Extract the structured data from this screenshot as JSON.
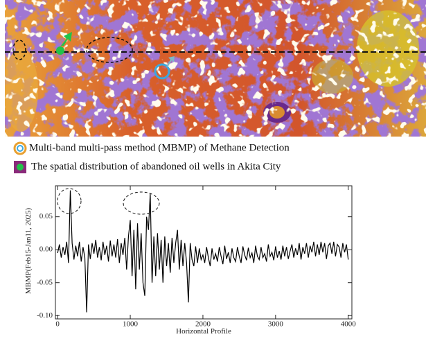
{
  "legend": [
    {
      "label": "Multi-band multi-pass method (MBMP) of Methane Detection"
    },
    {
      "label": "The spatial distribution of abandoned oil wells in Akita City"
    }
  ],
  "chart_data": {
    "type": "line",
    "xlabel": "Horizontal Profile",
    "ylabel": "MBMP(Feb15-Jan11, 2025)",
    "color": "#000000",
    "xlim": [
      -30,
      4050
    ],
    "ylim": [
      -0.105,
      0.097
    ],
    "xticks": [
      0,
      1000,
      2000,
      3000,
      4000
    ],
    "yticks": [
      {
        "value": -0.1,
        "label": "-0.10"
      },
      -0.05,
      {
        "value": 0,
        "label": "0.00"
      },
      0.05
    ],
    "x": [
      0,
      25,
      50,
      75,
      100,
      125,
      150,
      175,
      200,
      225,
      250,
      275,
      300,
      325,
      350,
      375,
      400,
      425,
      450,
      475,
      500,
      525,
      550,
      575,
      600,
      625,
      650,
      675,
      700,
      725,
      750,
      775,
      800,
      825,
      850,
      875,
      900,
      925,
      950,
      975,
      1000,
      1025,
      1050,
      1075,
      1100,
      1125,
      1150,
      1175,
      1200,
      1225,
      1250,
      1275,
      1300,
      1325,
      1350,
      1375,
      1400,
      1425,
      1450,
      1475,
      1500,
      1525,
      1550,
      1575,
      1600,
      1625,
      1650,
      1675,
      1700,
      1725,
      1750,
      1775,
      1800,
      1825,
      1850,
      1875,
      1900,
      1925,
      1950,
      1975,
      2000,
      2025,
      2050,
      2075,
      2100,
      2125,
      2150,
      2175,
      2200,
      2225,
      2250,
      2275,
      2300,
      2325,
      2350,
      2375,
      2400,
      2425,
      2450,
      2475,
      2500,
      2525,
      2550,
      2575,
      2600,
      2625,
      2650,
      2675,
      2700,
      2725,
      2750,
      2775,
      2800,
      2825,
      2850,
      2875,
      2900,
      2925,
      2950,
      2975,
      3000,
      3025,
      3050,
      3075,
      3100,
      3125,
      3150,
      3175,
      3200,
      3225,
      3250,
      3275,
      3300,
      3325,
      3350,
      3375,
      3400,
      3425,
      3450,
      3475,
      3500,
      3525,
      3550,
      3575,
      3600,
      3625,
      3650,
      3675,
      3700,
      3725,
      3750,
      3775,
      3800,
      3825,
      3850,
      3875,
      3900,
      3925,
      3950,
      3975,
      4000
    ],
    "values": [
      -0.005,
      0.008,
      -0.012,
      0.004,
      -0.008,
      0.012,
      -0.02,
      0.09,
      0.01,
      -0.015,
      0.006,
      -0.01,
      0.012,
      -0.018,
      0.004,
      -0.012,
      -0.095,
      0.008,
      -0.014,
      0.01,
      -0.006,
      0.015,
      -0.012,
      0.004,
      -0.016,
      0.012,
      -0.008,
      0.006,
      -0.018,
      0.014,
      -0.01,
      0.008,
      -0.012,
      0.016,
      -0.02,
      0.01,
      -0.008,
      0.018,
      -0.03,
      0.02,
      0.045,
      -0.04,
      0.03,
      -0.06,
      0.04,
      -0.03,
      0.025,
      -0.05,
      -0.07,
      0.05,
      0.03,
      0.085,
      -0.05,
      0.02,
      -0.04,
      0.025,
      -0.03,
      0.015,
      -0.05,
      0.02,
      -0.025,
      0.01,
      -0.035,
      0.018,
      -0.02,
      0.01,
      0.03,
      -0.03,
      0.015,
      -0.025,
      0.01,
      -0.02,
      -0.08,
      0.01,
      -0.015,
      -0.025,
      0.005,
      -0.02,
      0.002,
      -0.015,
      -0.008,
      -0.02,
      0.004,
      -0.012,
      -0.025,
      0.002,
      -0.015,
      -0.006,
      -0.018,
      0.004,
      -0.01,
      -0.022,
      0.006,
      -0.014,
      -0.004,
      -0.02,
      0.002,
      -0.012,
      -0.018,
      0.004,
      -0.01,
      -0.02,
      0.005,
      -0.008,
      -0.016,
      0.003,
      -0.012,
      -0.005,
      -0.02,
      0.006,
      -0.01,
      -0.015,
      0.004,
      -0.012,
      -0.006,
      -0.018,
      0.008,
      -0.01,
      -0.004,
      -0.016,
      0.005,
      -0.012,
      -0.002,
      -0.015,
      0.006,
      -0.01,
      0.004,
      -0.014,
      -0.002,
      0.008,
      -0.012,
      0.002,
      -0.008,
      0.01,
      -0.015,
      0.004,
      -0.006,
      0.01,
      -0.012,
      0.006,
      -0.004,
      0.012,
      -0.01,
      0.008,
      -0.008,
      0.012,
      -0.004,
      0.01,
      -0.014,
      0.006,
      0.01,
      -0.006,
      0.012,
      -0.01,
      0.008,
      0.004,
      -0.012,
      0.01,
      -0.004,
      0.008,
      -0.015
    ]
  }
}
